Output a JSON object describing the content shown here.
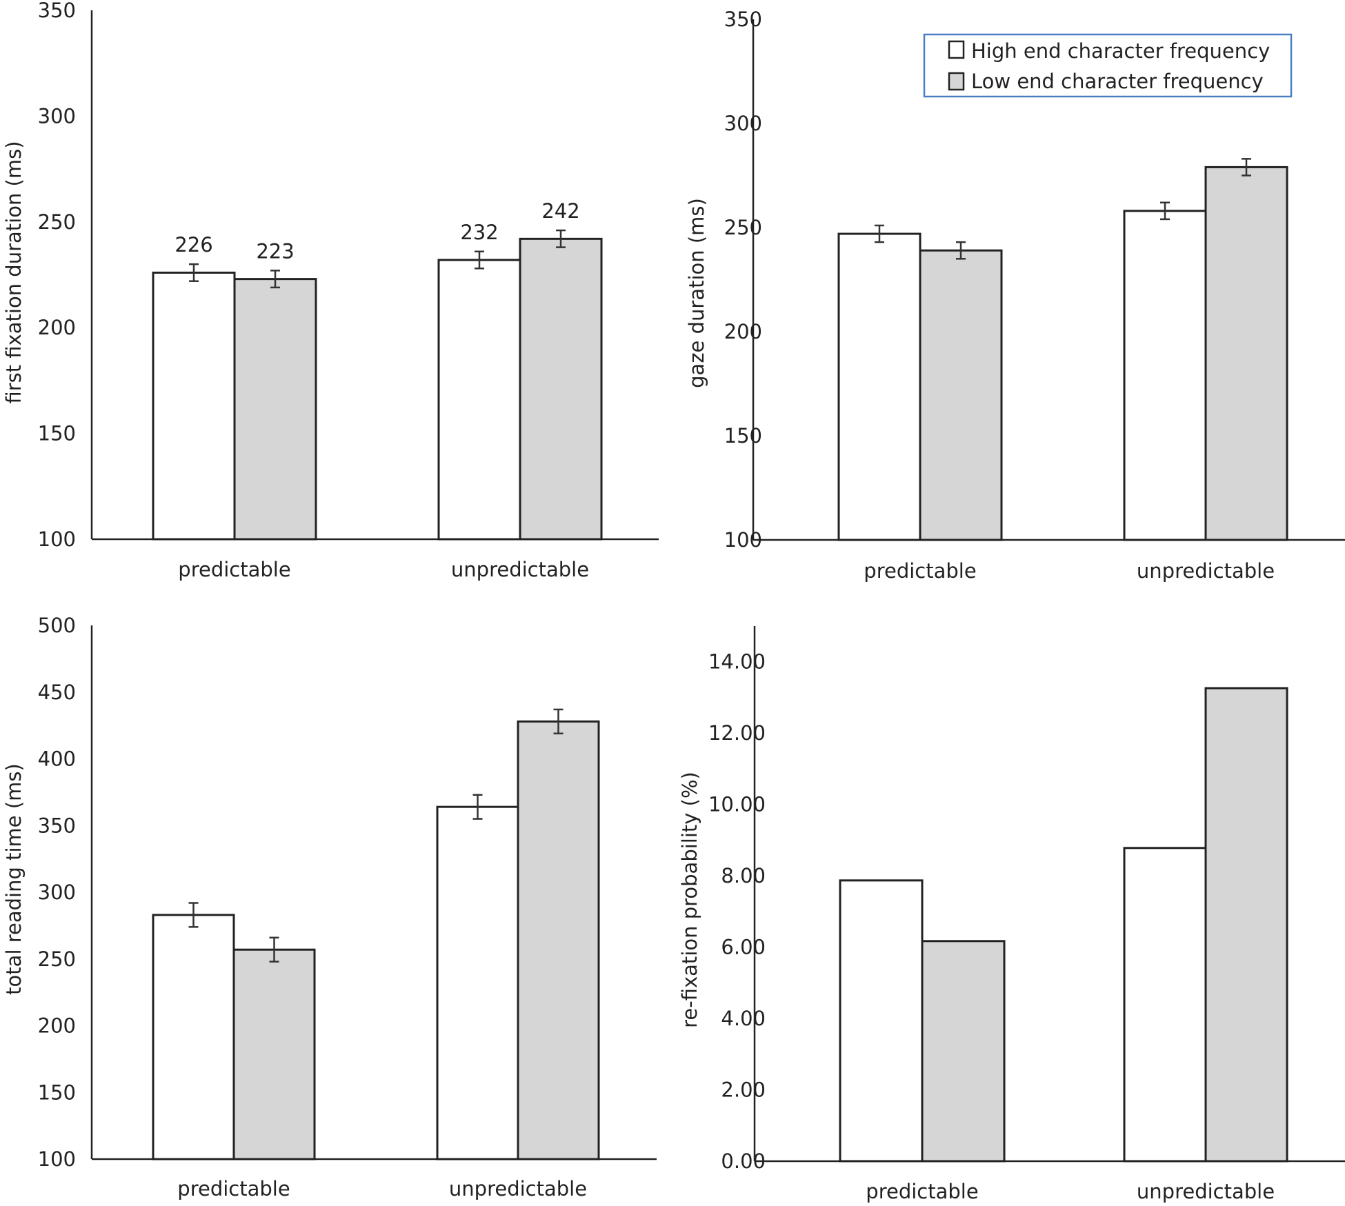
{
  "legend": {
    "entries": [
      {
        "label": "High end character frequency",
        "color": "#ffffff"
      },
      {
        "label": "Low end character frequency",
        "color": "#d6d6d6"
      }
    ],
    "placement": "top-right of top-right panel"
  },
  "chart_data": [
    {
      "type": "bar",
      "ylabel": "first fixation duration (ms)",
      "xlabel": "",
      "categories": [
        "predictable",
        "unpredictable"
      ],
      "ylim": [
        100,
        350
      ],
      "yticks": [
        "100",
        "150",
        "200",
        "250",
        "300",
        "350"
      ],
      "ytick_values": [
        100,
        150,
        200,
        250,
        300,
        350
      ],
      "grid": false,
      "series": [
        {
          "name": "High end character frequency",
          "values": [
            226,
            232
          ],
          "errors": [
            4,
            4
          ],
          "labels": [
            "226",
            "232"
          ]
        },
        {
          "name": "Low end character frequency",
          "values": [
            223,
            242
          ],
          "errors": [
            4,
            4
          ],
          "labels": [
            "223",
            "242"
          ]
        }
      ]
    },
    {
      "type": "bar",
      "ylabel": "gaze    duration (ms)",
      "xlabel": "",
      "categories": [
        "predictable",
        "unpredictable"
      ],
      "ylim": [
        100,
        350
      ],
      "yticks": [
        "100",
        "150",
        "200",
        "250",
        "300",
        "350"
      ],
      "ytick_values": [
        100,
        150,
        200,
        250,
        300,
        350
      ],
      "grid": false,
      "series": [
        {
          "name": "High end character frequency",
          "values": [
            247,
            258
          ],
          "errors": [
            4,
            4
          ]
        },
        {
          "name": "Low end character frequency",
          "values": [
            239,
            279
          ],
          "errors": [
            4,
            4
          ]
        }
      ]
    },
    {
      "type": "bar",
      "ylabel": "total reading time (ms)",
      "xlabel": "",
      "categories": [
        "predictable",
        "unpredictable"
      ],
      "ylim": [
        100,
        500
      ],
      "yticks": [
        "100",
        "150",
        "200",
        "250",
        "300",
        "350",
        "400",
        "450",
        "500"
      ],
      "ytick_values": [
        100,
        150,
        200,
        250,
        300,
        350,
        400,
        450,
        500
      ],
      "grid": false,
      "series": [
        {
          "name": "High end character frequency",
          "values": [
            283,
            364
          ],
          "errors": [
            9,
            9
          ]
        },
        {
          "name": "Low end character frequency",
          "values": [
            257,
            428
          ],
          "errors": [
            9,
            9
          ]
        }
      ]
    },
    {
      "type": "bar",
      "ylabel": "re-fixation probability (%)",
      "xlabel": "",
      "categories": [
        "predictable",
        "unpredictable"
      ],
      "ylim": [
        0,
        15
      ],
      "yticks": [
        "0.00",
        "2.00",
        "4.00",
        "6.00",
        "8.00",
        "10.00",
        "12.00",
        "14.00"
      ],
      "ytick_values": [
        0,
        2,
        4,
        6,
        8,
        10,
        12,
        14
      ],
      "grid": false,
      "series": [
        {
          "name": "High end character frequency",
          "values": [
            7.87,
            8.78
          ],
          "errors": [
            0,
            0
          ]
        },
        {
          "name": "Low end character frequency",
          "values": [
            6.17,
            13.26
          ],
          "errors": [
            0,
            0
          ]
        }
      ]
    }
  ]
}
